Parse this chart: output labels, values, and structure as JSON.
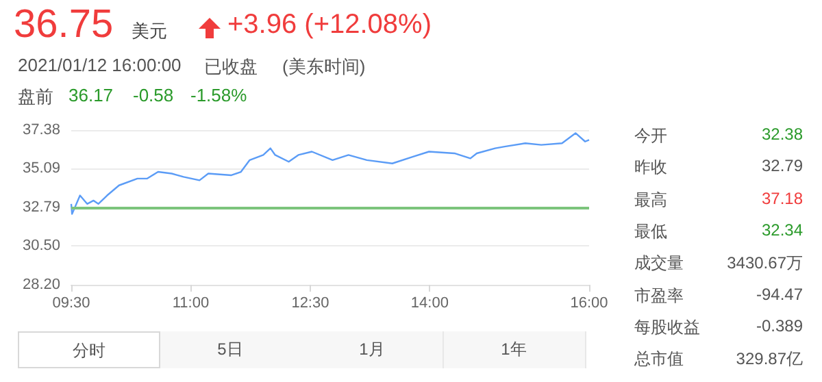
{
  "chart_data": {
    "type": "line",
    "title": "36.75",
    "annotations": [
      "美元",
      "+3.96 (+12.08%)",
      "2021/01/12 16:00:00",
      "已收盘",
      "(美东时间)",
      "盘前",
      "36.17",
      "-0.58",
      "-1.58%",
      "今开",
      "32.38",
      "昨收",
      "32.79",
      "最高",
      "37.18",
      "最低",
      "32.34",
      "成交量",
      "3430.67万",
      "市盈率",
      "-94.47",
      "每股收益",
      "-0.389",
      "总市值",
      "329.87亿",
      "分时",
      "5日",
      "1月",
      "1年"
    ],
    "series": [
      {
        "color": "#5b9cf6",
        "x": [
          9.5,
          9.51,
          9.61,
          9.7,
          9.78,
          9.84,
          9.95,
          10.1,
          10.33,
          10.45,
          10.59,
          10.76,
          10.91,
          11.11,
          11.22,
          11.51,
          11.63,
          11.74,
          11.91,
          12.0,
          12.06,
          12.23,
          12.35,
          12.52,
          12.78,
          12.98,
          13.21,
          13.53,
          13.79,
          13.99,
          14.31,
          14.51,
          14.59,
          14.82,
          14.94,
          15.2,
          15.4,
          15.66,
          15.83,
          15.95,
          16.0
        ],
        "values": [
          33.0,
          32.4,
          33.5,
          33.0,
          33.2,
          33.0,
          33.5,
          34.1,
          34.5,
          34.5,
          34.9,
          34.8,
          34.6,
          34.4,
          34.8,
          34.7,
          34.9,
          35.6,
          35.9,
          36.3,
          35.9,
          35.5,
          35.9,
          36.1,
          35.6,
          35.9,
          35.6,
          35.4,
          35.8,
          36.1,
          36.0,
          35.7,
          36.0,
          36.3,
          36.4,
          36.6,
          36.5,
          36.6,
          37.2,
          36.7,
          36.8
        ]
      }
    ],
    "xlim": [
      9.5,
      16
    ],
    "xticks": [
      {
        "value": 9.5,
        "label": "09:30"
      },
      {
        "value": 11,
        "label": "11:00"
      },
      {
        "value": 12.5,
        "label": "12:30"
      },
      {
        "value": 14,
        "label": "14:00"
      },
      {
        "value": 16,
        "label": "16:00"
      }
    ],
    "ylim": [
      28.2,
      37.38
    ],
    "yticks": [
      {
        "value": 28.2,
        "label": "28.20"
      },
      {
        "value": 30.5,
        "label": "30.50"
      },
      32.79,
      35.09,
      37.38
    ],
    "ref_lines": [
      {
        "axis": "y",
        "value": 32.79,
        "color": "#7cc47c"
      }
    ],
    "grid": "y",
    "marker": "none",
    "line_style": "solid"
  }
}
